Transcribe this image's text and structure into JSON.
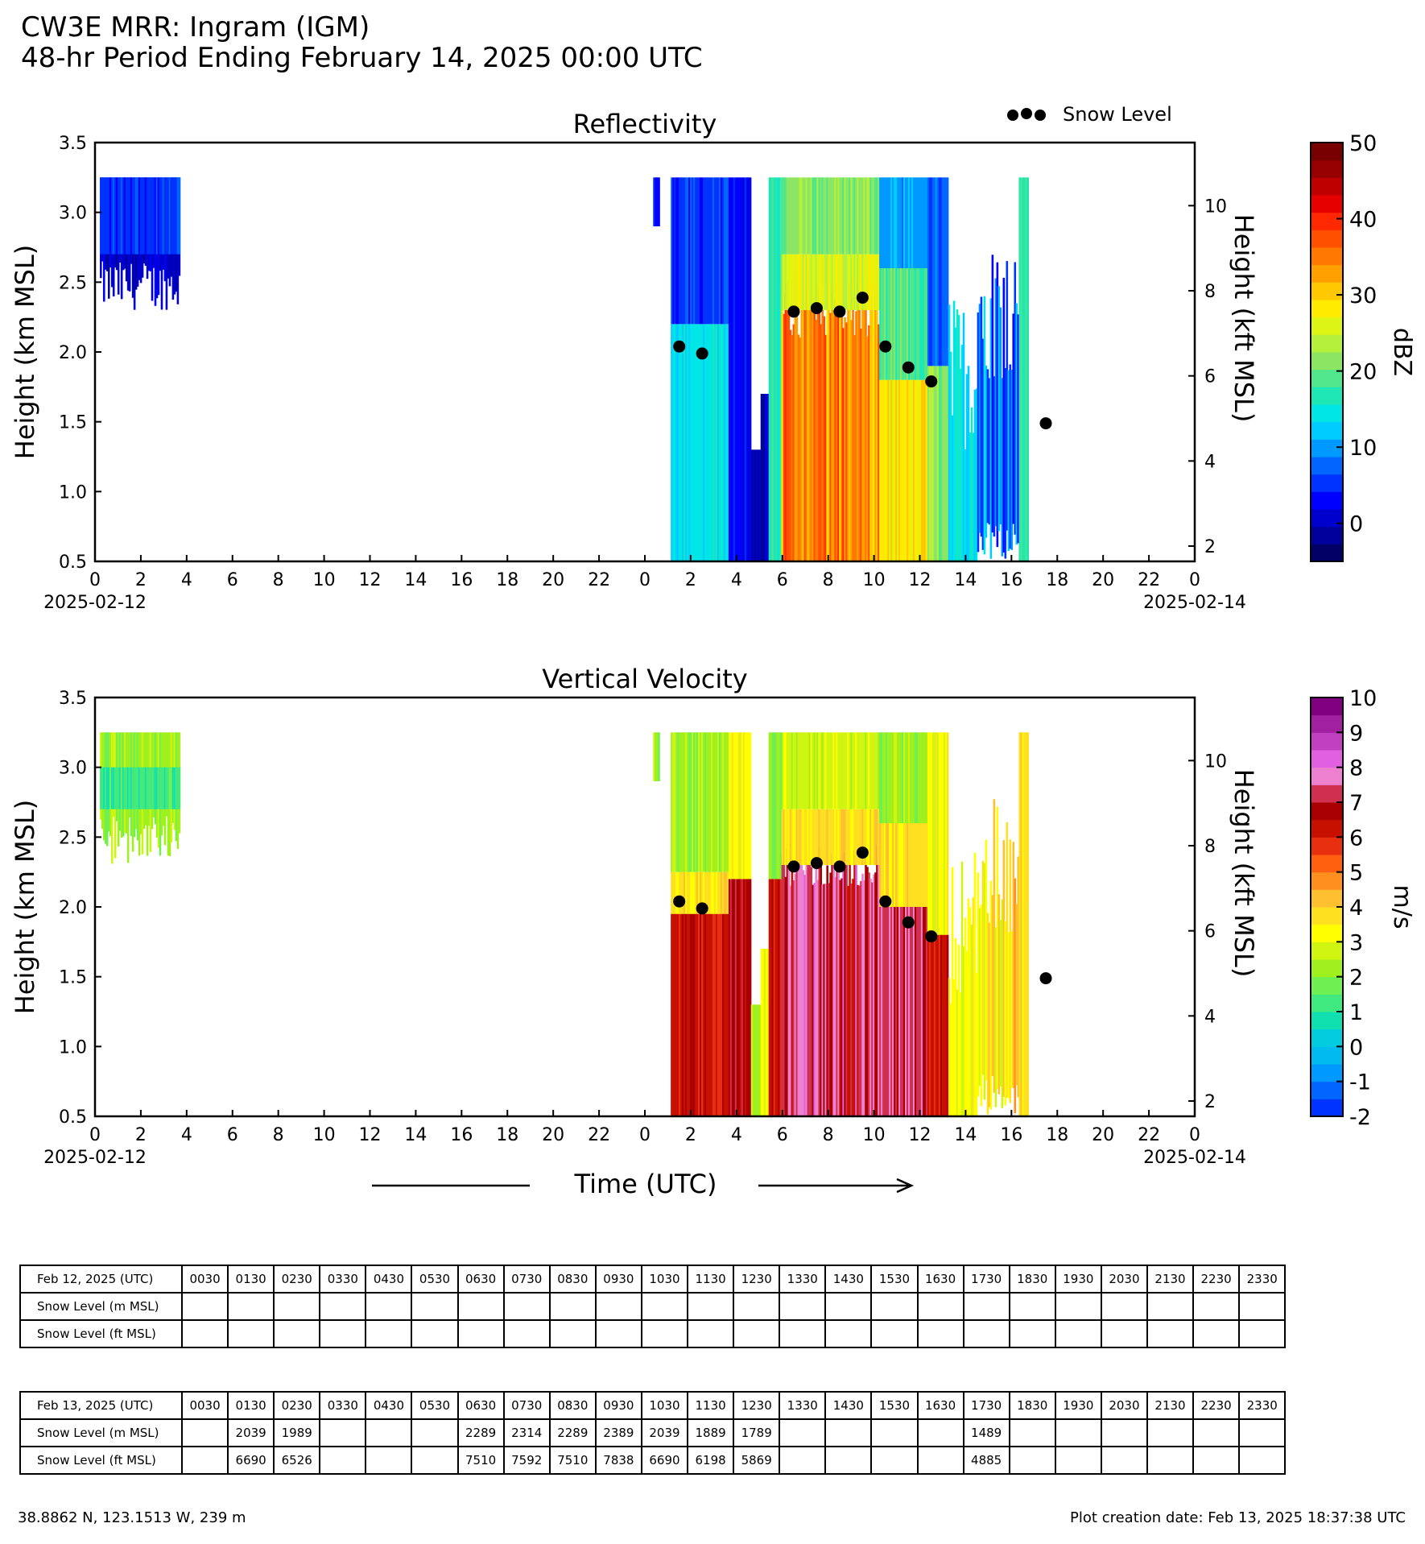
{
  "header": {
    "title": "CW3E MRR: Ingram (IGM)",
    "subtitle": "48-hr Period Ending February 14, 2025 00:00 UTC"
  },
  "colors": {
    "snow_marker": "#000000",
    "dbz_scale": [
      "#000066",
      "#00009b",
      "#0000cc",
      "#0000ff",
      "#0033ff",
      "#0066ff",
      "#0099ff",
      "#00ccff",
      "#00e6e6",
      "#1ee6b4",
      "#50e68c",
      "#8ce664",
      "#b4f03c",
      "#dcf514",
      "#ffeb00",
      "#ffc800",
      "#ffa000",
      "#ff7800",
      "#ff5000",
      "#ff2800",
      "#e60000",
      "#be0000",
      "#960000",
      "#780000"
    ],
    "vel_scale": [
      "#0033ff",
      "#0066ff",
      "#0099ff",
      "#00bbee",
      "#00ccdd",
      "#10e0b0",
      "#40e880",
      "#70f050",
      "#a0f020",
      "#d0f510",
      "#ffff00",
      "#ffe020",
      "#ffc030",
      "#ff9020",
      "#ff6010",
      "#e83010",
      "#c81000",
      "#a80000",
      "#d03050",
      "#ee80d0",
      "#e060e0",
      "#c040c0",
      "#a020a0",
      "#800080"
    ]
  },
  "legend": {
    "snow_level_label": "Snow Level"
  },
  "axes": {
    "x_label": "Time (UTC)",
    "start_date": "2025-02-12",
    "end_date": "2025-02-14"
  },
  "chart_data": [
    {
      "type": "heatmap",
      "title": "Reflectivity",
      "ylabel": "Height (km MSL)",
      "ylabel_right": "Height (kft MSL)",
      "ylim": [
        0.5,
        3.5
      ],
      "yticks": [
        "0.5",
        "1.0",
        "1.5",
        "2.0",
        "2.5",
        "3.0",
        "3.5"
      ],
      "yticks_right": [
        "2",
        "4",
        "6",
        "8",
        "10"
      ],
      "xticks": [
        "0",
        "2",
        "4",
        "6",
        "8",
        "10",
        "12",
        "14",
        "16",
        "18",
        "20",
        "22",
        "0",
        "2",
        "4",
        "6",
        "8",
        "10",
        "12",
        "14",
        "16",
        "18",
        "20",
        "22",
        "0"
      ],
      "colorbar": {
        "label": "dBZ",
        "ticks": [
          "0",
          "10",
          "20",
          "30",
          "40",
          "50"
        ],
        "range": [
          -5,
          50
        ]
      },
      "snow_level": {
        "times_hours": [
          25.5,
          26.5,
          30.5,
          31.5,
          32.5,
          33.5,
          34.5,
          35.5,
          36.5,
          41.5
        ],
        "heights_km": [
          2.039,
          1.989,
          2.289,
          2.314,
          2.289,
          2.389,
          2.039,
          1.889,
          1.789,
          1.489
        ]
      }
    },
    {
      "type": "heatmap",
      "title": "Vertical Velocity",
      "ylabel": "Height (km MSL)",
      "ylabel_right": "Height (kft MSL)",
      "ylim": [
        0.5,
        3.5
      ],
      "yticks": [
        "0.5",
        "1.0",
        "1.5",
        "2.0",
        "2.5",
        "3.0",
        "3.5"
      ],
      "yticks_right": [
        "2",
        "4",
        "6",
        "8",
        "10"
      ],
      "xticks": [
        "0",
        "2",
        "4",
        "6",
        "8",
        "10",
        "12",
        "14",
        "16",
        "18",
        "20",
        "22",
        "0",
        "2",
        "4",
        "6",
        "8",
        "10",
        "12",
        "14",
        "16",
        "18",
        "20",
        "22",
        "0"
      ],
      "colorbar": {
        "label": "m/s",
        "ticks": [
          "-2",
          "-1",
          "0",
          "1",
          "2",
          "3",
          "4",
          "5",
          "6",
          "7",
          "8",
          "9",
          "10"
        ],
        "range": [
          -2,
          10
        ]
      },
      "snow_level": {
        "times_hours": [
          25.5,
          26.5,
          30.5,
          31.5,
          32.5,
          33.5,
          34.5,
          35.5,
          36.5,
          41.5
        ],
        "heights_km": [
          2.039,
          1.989,
          2.289,
          2.314,
          2.289,
          2.389,
          2.039,
          1.889,
          1.789,
          1.489
        ]
      }
    }
  ],
  "tables": [
    {
      "header": "Feb 12, 2025 (UTC)",
      "times": [
        "0030",
        "0130",
        "0230",
        "0330",
        "0430",
        "0530",
        "0630",
        "0730",
        "0830",
        "0930",
        "1030",
        "1130",
        "1230",
        "1330",
        "1430",
        "1530",
        "1630",
        "1730",
        "1830",
        "1930",
        "2030",
        "2130",
        "2230",
        "2330"
      ],
      "rows": [
        {
          "label": "Snow Level (m MSL)",
          "values": [
            "",
            "",
            "",
            "",
            "",
            "",
            "",
            "",
            "",
            "",
            "",
            "",
            "",
            "",
            "",
            "",
            "",
            "",
            "",
            "",
            "",
            "",
            "",
            ""
          ]
        },
        {
          "label": "Snow Level (ft MSL)",
          "values": [
            "",
            "",
            "",
            "",
            "",
            "",
            "",
            "",
            "",
            "",
            "",
            "",
            "",
            "",
            "",
            "",
            "",
            "",
            "",
            "",
            "",
            "",
            "",
            ""
          ]
        }
      ]
    },
    {
      "header": "Feb 13, 2025 (UTC)",
      "times": [
        "0030",
        "0130",
        "0230",
        "0330",
        "0430",
        "0530",
        "0630",
        "0730",
        "0830",
        "0930",
        "1030",
        "1130",
        "1230",
        "1330",
        "1430",
        "1530",
        "1630",
        "1730",
        "1830",
        "1930",
        "2030",
        "2130",
        "2230",
        "2330"
      ],
      "rows": [
        {
          "label": "Snow Level (m MSL)",
          "values": [
            "",
            "2039",
            "1989",
            "",
            "",
            "",
            "2289",
            "2314",
            "2289",
            "2389",
            "2039",
            "1889",
            "1789",
            "",
            "",
            "",
            "",
            "1489",
            "",
            "",
            "",
            "",
            "",
            ""
          ]
        },
        {
          "label": "Snow Level (ft MSL)",
          "values": [
            "",
            "6690",
            "6526",
            "",
            "",
            "",
            "7510",
            "7592",
            "7510",
            "7838",
            "6690",
            "6198",
            "5869",
            "",
            "",
            "",
            "",
            "4885",
            "",
            "",
            "",
            "",
            "",
            ""
          ]
        }
      ]
    }
  ],
  "footer": {
    "location": "38.8862 N, 123.1513 W, 239 m",
    "created": "Plot creation date: Feb 13, 2025 18:37:38 UTC"
  }
}
